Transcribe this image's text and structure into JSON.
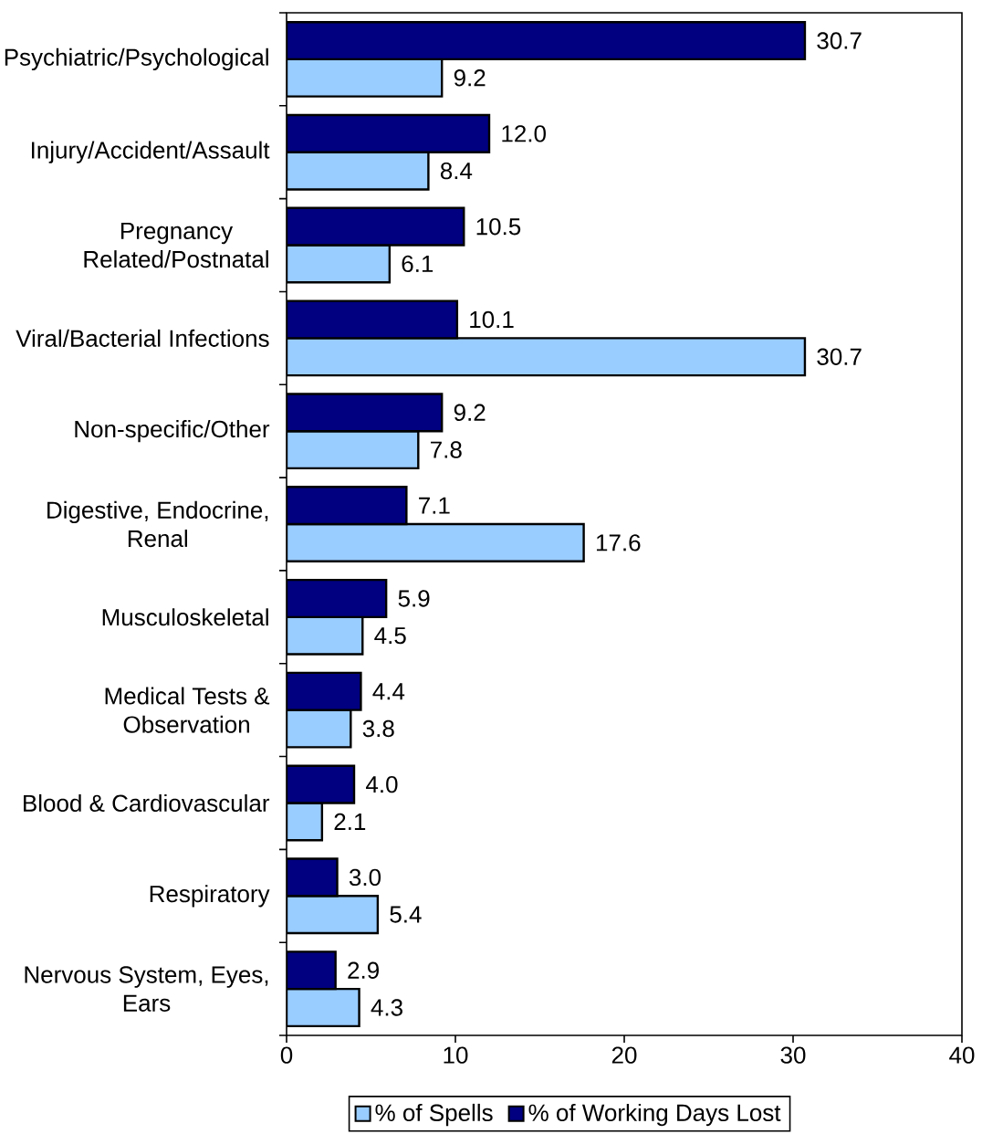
{
  "chart_data": {
    "type": "bar",
    "orientation": "horizontal",
    "categories": [
      "Psychiatric/Psychological",
      "Injury/Accident/Assault",
      "Pregnancy Related/Postnatal",
      "Viral/Bacterial Infections",
      "Non-specific/Other",
      "Digestive, Endocrine, Renal",
      "Musculoskeletal",
      "Medical Tests & Observation",
      "Blood & Cardiovascular",
      "Respiratory",
      "Nervous System, Eyes, Ears"
    ],
    "series": [
      {
        "name": "% of Spells",
        "color": "#99ccff",
        "values": [
          9.2,
          8.4,
          6.1,
          30.7,
          7.8,
          17.6,
          4.5,
          3.8,
          2.1,
          5.4,
          4.3
        ],
        "value_labels": [
          "9.2",
          "8.4",
          "6.1",
          "30.7",
          "7.8",
          "17.6",
          "4.5",
          "3.8",
          "2.1",
          "5.4",
          "4.3"
        ]
      },
      {
        "name": "% of Working Days Lost",
        "color": "#000080",
        "values": [
          30.7,
          12.0,
          10.5,
          10.1,
          9.2,
          7.1,
          5.9,
          4.4,
          4.0,
          3.0,
          2.9
        ],
        "value_labels": [
          "30.7",
          "12.0",
          "10.5",
          "10.1",
          "9.2",
          "7.1",
          "5.9",
          "4.4",
          "4.0",
          "3.0",
          "2.9"
        ]
      }
    ],
    "xlim": [
      0,
      40
    ],
    "xticks": [
      0,
      10,
      20,
      30,
      40
    ],
    "legend": "bottom"
  }
}
